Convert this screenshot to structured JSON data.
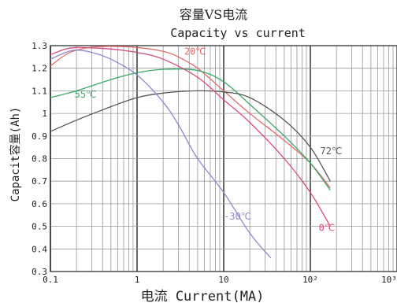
{
  "chart_data": {
    "type": "line",
    "title": "容量VS电流",
    "subtitle": "Capacity vs current",
    "xlabel": "电流 Current(MA)",
    "ylabel": "Capacit容量(Ah)",
    "xscale": "log",
    "xlim": [
      0.1,
      1000
    ],
    "ylim": [
      0.3,
      1.3
    ],
    "grid": true,
    "x_ticks": [
      {
        "value": 0.1,
        "label": "0.1"
      },
      {
        "value": 1,
        "label": "1"
      },
      {
        "value": 10,
        "label": "10"
      },
      {
        "value": 100,
        "label": "10²"
      },
      {
        "value": 1000,
        "label": "10³"
      }
    ],
    "y_ticks": [
      {
        "value": 0.3,
        "label": "0.3"
      },
      {
        "value": 0.4,
        "label": "0.4"
      },
      {
        "value": 0.5,
        "label": "0.5"
      },
      {
        "value": 0.6,
        "label": "0.6"
      },
      {
        "value": 0.7,
        "label": "0.7"
      },
      {
        "value": 0.8,
        "label": "0.8"
      },
      {
        "value": 0.9,
        "label": "0.9"
      },
      {
        "value": 1.0,
        "label": "1"
      },
      {
        "value": 1.1,
        "label": "1.1"
      },
      {
        "value": 1.2,
        "label": "1.2"
      },
      {
        "value": 1.3,
        "label": "1.3"
      }
    ],
    "series": [
      {
        "name": "20℃",
        "color": "#e06a6a",
        "label_at": [
          3.5,
          1.26
        ],
        "points": [
          [
            0.1,
            1.21
          ],
          [
            0.15,
            1.26
          ],
          [
            0.2,
            1.28
          ],
          [
            0.3,
            1.293
          ],
          [
            0.5,
            1.297
          ],
          [
            1,
            1.292
          ],
          [
            2,
            1.275
          ],
          [
            3,
            1.25
          ],
          [
            5,
            1.2
          ],
          [
            10,
            1.1
          ],
          [
            20,
            1.0
          ],
          [
            50,
            0.88
          ],
          [
            100,
            0.78
          ],
          [
            170,
            0.67
          ]
        ]
      },
      {
        "name": "55℃",
        "color": "#3aa86a",
        "label_at": [
          0.19,
          1.07
        ],
        "points": [
          [
            0.1,
            1.07
          ],
          [
            0.2,
            1.1
          ],
          [
            0.5,
            1.15
          ],
          [
            1,
            1.18
          ],
          [
            2,
            1.195
          ],
          [
            5,
            1.19
          ],
          [
            10,
            1.14
          ],
          [
            20,
            1.04
          ],
          [
            50,
            0.9
          ],
          [
            100,
            0.78
          ],
          [
            170,
            0.66
          ]
        ]
      },
      {
        "name": "72℃",
        "color": "#555555",
        "label_at": [
          130,
          0.82
        ],
        "points": [
          [
            0.1,
            0.92
          ],
          [
            0.2,
            0.97
          ],
          [
            0.5,
            1.03
          ],
          [
            1,
            1.07
          ],
          [
            2,
            1.09
          ],
          [
            5,
            1.1
          ],
          [
            10,
            1.095
          ],
          [
            20,
            1.07
          ],
          [
            50,
            0.97
          ],
          [
            100,
            0.85
          ],
          [
            170,
            0.7
          ]
        ]
      },
      {
        "name": "-30℃",
        "color": "#8e88cc",
        "label_at": [
          10,
          0.53
        ],
        "points": [
          [
            0.1,
            1.24
          ],
          [
            0.15,
            1.27
          ],
          [
            0.2,
            1.28
          ],
          [
            0.3,
            1.27
          ],
          [
            0.5,
            1.24
          ],
          [
            1,
            1.17
          ],
          [
            2,
            1.05
          ],
          [
            3,
            0.95
          ],
          [
            5,
            0.8
          ],
          [
            10,
            0.65
          ],
          [
            20,
            0.47
          ],
          [
            35,
            0.36
          ]
        ]
      },
      {
        "name": "0℃",
        "color": "#d94b7d",
        "label_at": [
          125,
          0.48
        ],
        "points": [
          [
            0.1,
            1.26
          ],
          [
            0.15,
            1.285
          ],
          [
            0.2,
            1.292
          ],
          [
            0.3,
            1.29
          ],
          [
            0.5,
            1.285
          ],
          [
            1,
            1.27
          ],
          [
            2,
            1.24
          ],
          [
            5,
            1.16
          ],
          [
            10,
            1.06
          ],
          [
            20,
            0.96
          ],
          [
            50,
            0.8
          ],
          [
            100,
            0.65
          ],
          [
            170,
            0.5
          ]
        ]
      }
    ]
  }
}
